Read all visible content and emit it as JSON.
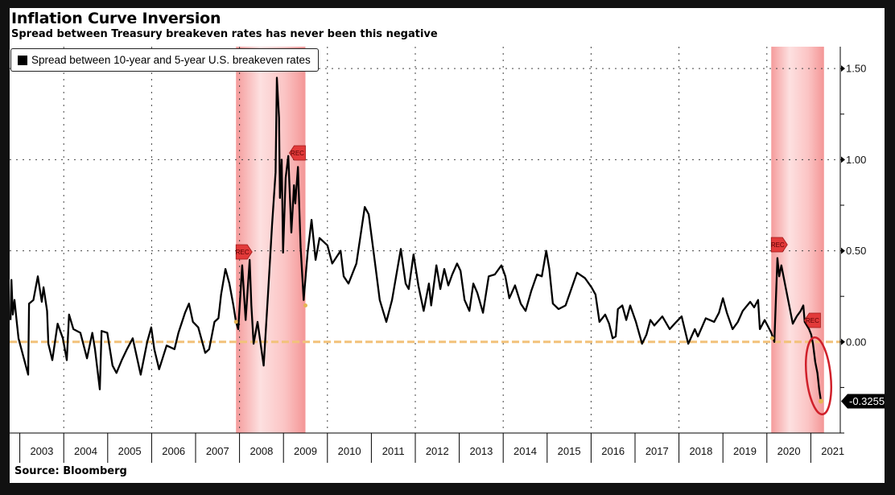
{
  "header": {
    "title": "Inflation Curve Inversion",
    "subtitle": "Spread between Treasury breakeven rates has never been this negative"
  },
  "footer": {
    "source": "Source: Bloomberg"
  },
  "colors": {
    "series": "#000000",
    "recession": "#f7a5a5",
    "zero_line": "#f2c27a",
    "annotation_ellipse": "#d0202a",
    "rec_flag": "#e23a3a"
  },
  "chart_data": {
    "type": "line",
    "title": "Inflation Curve Inversion",
    "subtitle": "Spread between Treasury breakeven rates has never been this negative",
    "legend": {
      "placement": "top-left",
      "entries": [
        "Spread between 10-year and 5-year U.S. breakeven rates"
      ]
    },
    "xlabel": "",
    "ylabel": "",
    "x_tick_labels": [
      "2003",
      "2004",
      "2005",
      "2006",
      "2007",
      "2008",
      "2009",
      "2010",
      "2011",
      "2012",
      "2013",
      "2014",
      "2015",
      "2016",
      "2017",
      "2018",
      "2019",
      "2020",
      "2021"
    ],
    "y_axis_side": "right",
    "y_tick_labels": [
      "0.00",
      "0.50",
      "1.00",
      "1.50"
    ],
    "y_ticks": [
      0,
      0.5,
      1.0,
      1.5
    ],
    "ylim": [
      -0.5,
      1.62
    ],
    "xlim": [
      2002.78,
      2021.75
    ],
    "grid": {
      "horizontal": "dotted",
      "vertical": "dotted, every 2 years"
    },
    "reference_line": {
      "value": 0,
      "style": "dashed orange"
    },
    "last_value_label": "-0.3255",
    "recessions": [
      {
        "start": 2007.92,
        "end": 2009.5,
        "flags": [
          "REC",
          "REC"
        ]
      },
      {
        "start": 2020.1,
        "end": 2021.3,
        "flags": [
          "REC",
          "REC"
        ]
      }
    ],
    "annotation": "red ellipse circling the latest decline below zero",
    "series": [
      {
        "name": "Spread between 10-year and 5-year U.S. breakeven rates",
        "points": [
          [
            2002.79,
            0.12
          ],
          [
            2002.81,
            0.34
          ],
          [
            2002.84,
            0.15
          ],
          [
            2002.88,
            0.23
          ],
          [
            2002.93,
            0.11
          ],
          [
            2002.97,
            0.02
          ],
          [
            2003.19,
            -0.18
          ],
          [
            2003.21,
            0.21
          ],
          [
            2003.31,
            0.23
          ],
          [
            2003.41,
            0.36
          ],
          [
            2003.5,
            0.22
          ],
          [
            2003.54,
            0.3
          ],
          [
            2003.62,
            0.17
          ],
          [
            2003.65,
            -0.01
          ],
          [
            2003.74,
            -0.1
          ],
          [
            2003.86,
            0.1
          ],
          [
            2003.98,
            0.02
          ],
          [
            2004.07,
            -0.1
          ],
          [
            2004.12,
            0.15
          ],
          [
            2004.22,
            0.07
          ],
          [
            2004.38,
            0.05
          ],
          [
            2004.53,
            -0.09
          ],
          [
            2004.65,
            0.05
          ],
          [
            2004.71,
            -0.04
          ],
          [
            2004.82,
            -0.26
          ],
          [
            2004.86,
            0.06
          ],
          [
            2004.99,
            0.05
          ],
          [
            2005.11,
            -0.13
          ],
          [
            2005.2,
            -0.17
          ],
          [
            2005.32,
            -0.1
          ],
          [
            2005.44,
            -0.04
          ],
          [
            2005.57,
            0.02
          ],
          [
            2005.75,
            -0.18
          ],
          [
            2005.9,
            0.0
          ],
          [
            2005.99,
            0.08
          ],
          [
            2006.06,
            -0.04
          ],
          [
            2006.17,
            -0.15
          ],
          [
            2006.34,
            -0.02
          ],
          [
            2006.52,
            -0.04
          ],
          [
            2006.61,
            0.05
          ],
          [
            2006.76,
            0.16
          ],
          [
            2006.85,
            0.21
          ],
          [
            2006.94,
            0.11
          ],
          [
            2007.06,
            0.08
          ],
          [
            2007.22,
            -0.06
          ],
          [
            2007.31,
            -0.04
          ],
          [
            2007.43,
            0.11
          ],
          [
            2007.52,
            0.13
          ],
          [
            2007.58,
            0.26
          ],
          [
            2007.68,
            0.4
          ],
          [
            2007.77,
            0.32
          ],
          [
            2007.86,
            0.2
          ],
          [
            2007.92,
            0.11
          ],
          [
            2007.97,
            0.07
          ],
          [
            2008.06,
            0.42
          ],
          [
            2008.14,
            0.12
          ],
          [
            2008.23,
            0.45
          ],
          [
            2008.27,
            0.2
          ],
          [
            2008.32,
            -0.01
          ],
          [
            2008.41,
            0.11
          ],
          [
            2008.55,
            -0.13
          ],
          [
            2008.65,
            0.27
          ],
          [
            2008.74,
            0.64
          ],
          [
            2008.82,
            0.93
          ],
          [
            2008.85,
            1.45
          ],
          [
            2008.9,
            1.23
          ],
          [
            2008.92,
            0.79
          ],
          [
            2008.96,
            1.0
          ],
          [
            2008.99,
            0.49
          ],
          [
            2009.05,
            0.9
          ],
          [
            2009.11,
            1.02
          ],
          [
            2009.18,
            0.6
          ],
          [
            2009.24,
            0.86
          ],
          [
            2009.27,
            0.76
          ],
          [
            2009.33,
            0.96
          ],
          [
            2009.39,
            0.52
          ],
          [
            2009.46,
            0.23
          ],
          [
            2009.55,
            0.49
          ],
          [
            2009.64,
            0.67
          ],
          [
            2009.73,
            0.45
          ],
          [
            2009.82,
            0.57
          ],
          [
            2010.0,
            0.53
          ],
          [
            2010.11,
            0.43
          ],
          [
            2010.3,
            0.5
          ],
          [
            2010.37,
            0.36
          ],
          [
            2010.48,
            0.32
          ],
          [
            2010.66,
            0.43
          ],
          [
            2010.85,
            0.74
          ],
          [
            2010.94,
            0.7
          ],
          [
            2011.1,
            0.4
          ],
          [
            2011.19,
            0.23
          ],
          [
            2011.34,
            0.11
          ],
          [
            2011.47,
            0.23
          ],
          [
            2011.67,
            0.51
          ],
          [
            2011.78,
            0.32
          ],
          [
            2011.85,
            0.29
          ],
          [
            2011.96,
            0.48
          ],
          [
            2012.07,
            0.31
          ],
          [
            2012.19,
            0.17
          ],
          [
            2012.31,
            0.32
          ],
          [
            2012.36,
            0.2
          ],
          [
            2012.48,
            0.42
          ],
          [
            2012.57,
            0.29
          ],
          [
            2012.66,
            0.4
          ],
          [
            2012.75,
            0.31
          ],
          [
            2012.84,
            0.37
          ],
          [
            2012.95,
            0.43
          ],
          [
            2013.03,
            0.39
          ],
          [
            2013.12,
            0.23
          ],
          [
            2013.23,
            0.17
          ],
          [
            2013.32,
            0.32
          ],
          [
            2013.41,
            0.27
          ],
          [
            2013.54,
            0.16
          ],
          [
            2013.67,
            0.36
          ],
          [
            2013.81,
            0.37
          ],
          [
            2013.96,
            0.42
          ],
          [
            2014.05,
            0.36
          ],
          [
            2014.14,
            0.24
          ],
          [
            2014.27,
            0.31
          ],
          [
            2014.4,
            0.21
          ],
          [
            2014.51,
            0.17
          ],
          [
            2014.64,
            0.28
          ],
          [
            2014.77,
            0.37
          ],
          [
            2014.88,
            0.36
          ],
          [
            2014.98,
            0.5
          ],
          [
            2015.05,
            0.4
          ],
          [
            2015.13,
            0.21
          ],
          [
            2015.26,
            0.18
          ],
          [
            2015.42,
            0.2
          ],
          [
            2015.55,
            0.29
          ],
          [
            2015.68,
            0.38
          ],
          [
            2015.86,
            0.35
          ],
          [
            2016.01,
            0.3
          ],
          [
            2016.1,
            0.26
          ],
          [
            2016.19,
            0.11
          ],
          [
            2016.32,
            0.15
          ],
          [
            2016.41,
            0.1
          ],
          [
            2016.49,
            0.02
          ],
          [
            2016.56,
            0.03
          ],
          [
            2016.61,
            0.18
          ],
          [
            2016.71,
            0.2
          ],
          [
            2016.8,
            0.12
          ],
          [
            2016.89,
            0.2
          ],
          [
            2017.02,
            0.11
          ],
          [
            2017.16,
            -0.01
          ],
          [
            2017.26,
            0.04
          ],
          [
            2017.35,
            0.12
          ],
          [
            2017.44,
            0.09
          ],
          [
            2017.62,
            0.14
          ],
          [
            2017.79,
            0.07
          ],
          [
            2017.94,
            0.11
          ],
          [
            2018.06,
            0.14
          ],
          [
            2018.21,
            -0.01
          ],
          [
            2018.36,
            0.07
          ],
          [
            2018.43,
            0.03
          ],
          [
            2018.61,
            0.13
          ],
          [
            2018.8,
            0.11
          ],
          [
            2018.91,
            0.16
          ],
          [
            2019.0,
            0.24
          ],
          [
            2019.09,
            0.16
          ],
          [
            2019.22,
            0.07
          ],
          [
            2019.34,
            0.11
          ],
          [
            2019.45,
            0.17
          ],
          [
            2019.62,
            0.22
          ],
          [
            2019.71,
            0.19
          ],
          [
            2019.8,
            0.23
          ],
          [
            2019.84,
            0.07
          ],
          [
            2019.95,
            0.12
          ],
          [
            2020.1,
            0.05
          ],
          [
            2020.17,
            0.0
          ],
          [
            2020.24,
            0.46
          ],
          [
            2020.28,
            0.36
          ],
          [
            2020.33,
            0.42
          ],
          [
            2020.41,
            0.32
          ],
          [
            2020.5,
            0.21
          ],
          [
            2020.59,
            0.1
          ],
          [
            2020.68,
            0.14
          ],
          [
            2020.77,
            0.17
          ],
          [
            2020.83,
            0.2
          ],
          [
            2020.86,
            0.11
          ],
          [
            2020.96,
            0.07
          ],
          [
            2021.01,
            0.04
          ],
          [
            2021.05,
            -0.01
          ],
          [
            2021.1,
            -0.11
          ],
          [
            2021.15,
            -0.17
          ],
          [
            2021.19,
            -0.26
          ],
          [
            2021.23,
            -0.3255
          ]
        ]
      }
    ]
  }
}
